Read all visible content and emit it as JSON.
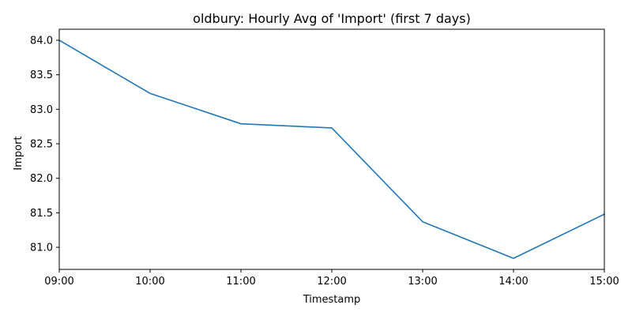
{
  "chart_data": {
    "type": "line",
    "title": "oldbury: Hourly Avg of 'Import' (first 7 days)",
    "xlabel": "Timestamp",
    "ylabel": "Import",
    "x": [
      "09:00",
      "10:00",
      "11:00",
      "12:00",
      "13:00",
      "14:00",
      "15:00"
    ],
    "series": [
      {
        "values": [
          84.0,
          83.23,
          82.79,
          82.73,
          81.37,
          80.84,
          81.48
        ]
      }
    ],
    "ylim": [
      80.68,
      84.16
    ],
    "yticks": [
      81.0,
      81.5,
      82.0,
      82.5,
      83.0,
      83.5,
      84.0
    ],
    "ytick_labels": [
      "81.0",
      "81.5",
      "82.0",
      "82.5",
      "83.0",
      "83.5",
      "84.0"
    ],
    "grid": false,
    "legend": "none",
    "colors": {
      "line": "#1f77b4",
      "axis": "#000000"
    }
  }
}
